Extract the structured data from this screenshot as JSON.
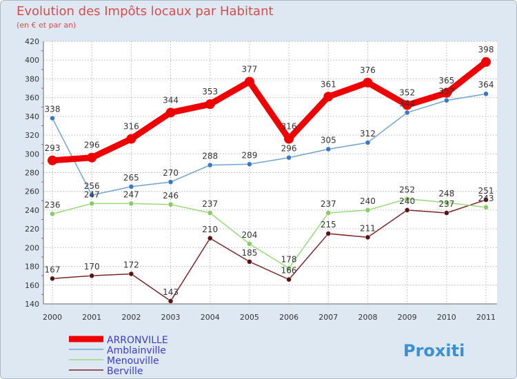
{
  "header": {
    "title": "Evolution des Impôts locaux par Habitant",
    "subtitle": "(en € et par an)"
  },
  "logo": {
    "text": "Proxiti"
  },
  "colors": {
    "background": "#dde8f2",
    "plot_bg": "#ffffff",
    "grid": "#c6c6c6",
    "title": "#d94b4b",
    "legend_text": "#3b3bcc"
  },
  "chart_data": {
    "type": "line",
    "x": [
      "2000",
      "2001",
      "2002",
      "2003",
      "2004",
      "2005",
      "2006",
      "2007",
      "2008",
      "2009",
      "2010",
      "2011"
    ],
    "ylim": [
      140,
      420
    ],
    "yticks": [
      140,
      160,
      180,
      200,
      220,
      240,
      260,
      280,
      300,
      320,
      340,
      360,
      380,
      400,
      420
    ],
    "grid": true,
    "legend_position": "bottom-left",
    "title": "Evolution des Impôts locaux par Habitant",
    "subtitle": "(en € et par an)",
    "series": [
      {
        "name": "ARRONVILLE",
        "color": "#ee0000",
        "width": 9,
        "marker_r": 7,
        "label_pos": "above",
        "values": [
          293,
          296,
          316,
          344,
          353,
          377,
          316,
          361,
          376,
          352,
          365,
          398
        ]
      },
      {
        "name": "Amblainville",
        "color": "#6fa3d2",
        "width": 1.5,
        "marker_r": 3.5,
        "marker_fill": "#3a78c3",
        "label_pos": "above",
        "values": [
          338,
          256,
          265,
          270,
          288,
          289,
          296,
          305,
          312,
          344,
          357,
          364
        ]
      },
      {
        "name": "Menouville",
        "color": "#99d97a",
        "width": 1.5,
        "marker_r": 3.5,
        "marker_fill": "#88cc66",
        "label_pos": "above",
        "values": [
          236,
          247,
          247,
          246,
          237,
          204,
          178,
          237,
          240,
          252,
          248,
          243
        ]
      },
      {
        "name": "Berville",
        "color": "#7a2424",
        "width": 1.5,
        "marker_r": 3.5,
        "marker_fill": "#5a1212",
        "label_pos": "above",
        "values": [
          167,
          170,
          172,
          143,
          210,
          185,
          166,
          215,
          211,
          240,
          237,
          251
        ]
      }
    ]
  }
}
